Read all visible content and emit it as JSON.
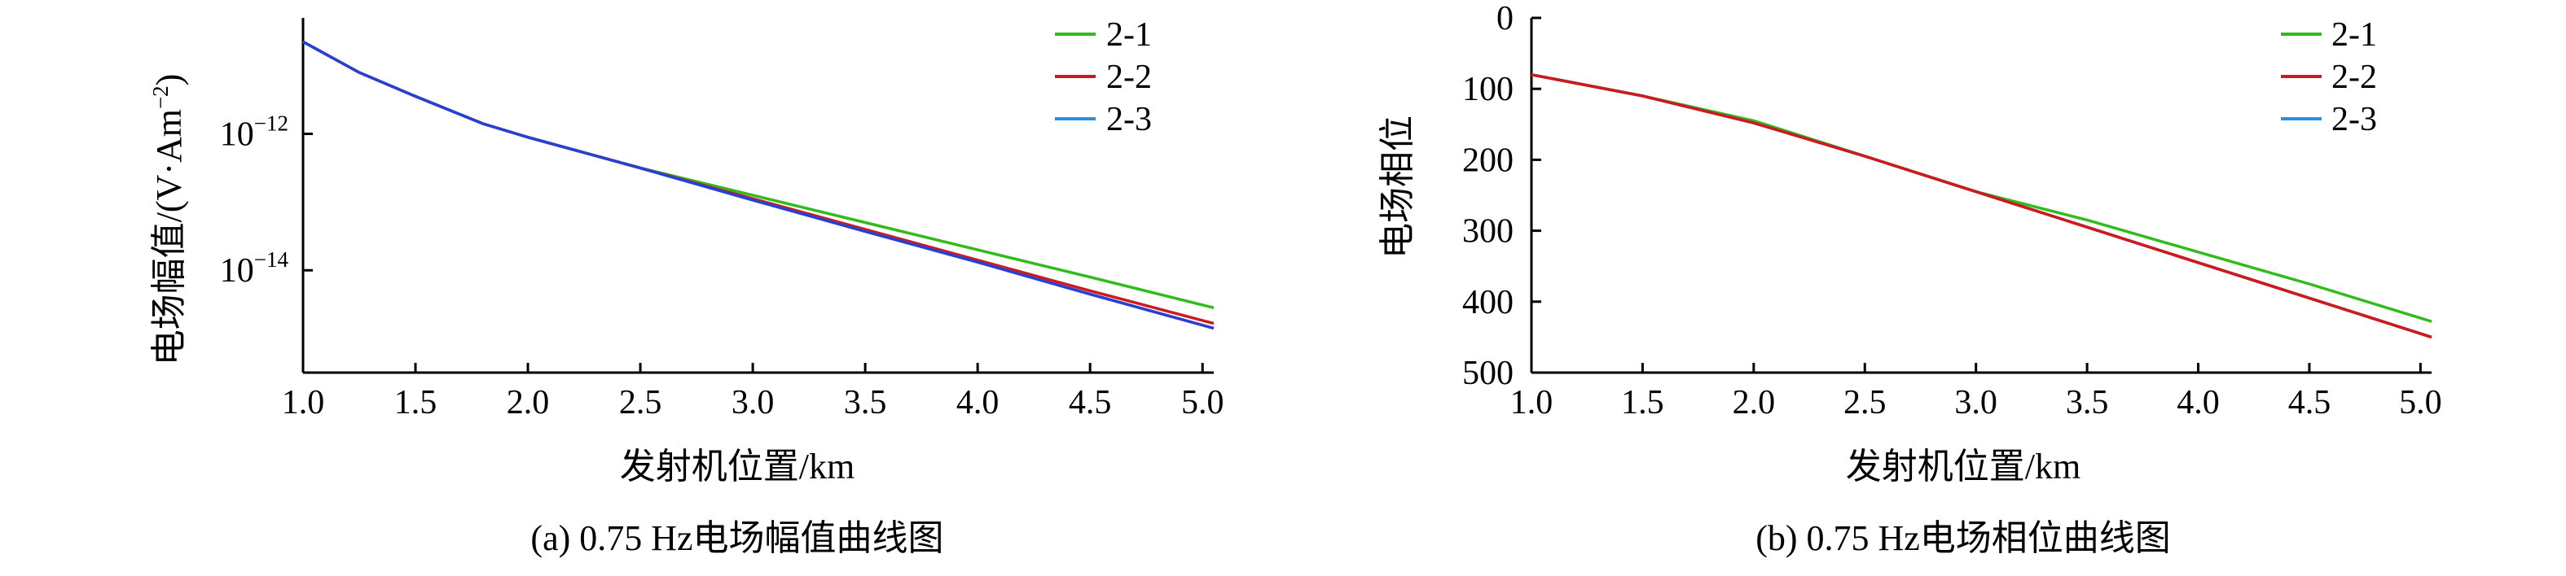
{
  "chart_data": [
    {
      "type": "line",
      "title": "(a) 0.75 Hz电场幅值曲线图",
      "xlabel": "发射机位置/km",
      "ylabel": "电场幅值/(V·Am⁻²)",
      "yscale": "log",
      "xlim": [
        1.0,
        5.05
      ],
      "ylim_log10": [
        -15.5,
        -10.3
      ],
      "xticks": [
        "1.0",
        "1.5",
        "2.0",
        "2.5",
        "3.0",
        "3.5",
        "4.0",
        "4.5",
        "5.0"
      ],
      "ytick_exponents": [
        "−12",
        "−14"
      ],
      "legend_position": "top-right",
      "series": [
        {
          "name": "2-1",
          "color": "#33bb1e",
          "x": [
            1.0,
            1.25,
            1.5,
            1.8,
            2.0,
            2.5,
            3.0,
            3.5,
            4.0,
            4.5,
            5.05
          ],
          "log10_y": [
            -10.65,
            -11.1,
            -11.45,
            -11.85,
            -12.05,
            -12.5,
            -12.9,
            -13.3,
            -13.7,
            -14.1,
            -14.55
          ]
        },
        {
          "name": "2-2",
          "color": "#cc1a1e",
          "x": [
            1.0,
            1.25,
            1.5,
            1.8,
            2.0,
            2.5,
            3.0,
            3.5,
            4.0,
            4.5,
            5.05
          ],
          "log10_y": [
            -10.65,
            -11.1,
            -11.45,
            -11.85,
            -12.05,
            -12.5,
            -12.95,
            -13.4,
            -13.85,
            -14.3,
            -14.78
          ]
        },
        {
          "name": "2-3",
          "color": "#2a8fe0",
          "x": [
            1.0,
            1.25,
            1.5,
            1.8,
            2.0,
            2.5,
            3.0,
            3.5,
            4.0,
            4.5,
            5.05
          ],
          "log10_y": [
            -10.65,
            -11.1,
            -11.45,
            -11.85,
            -12.05,
            -12.5,
            -12.97,
            -13.43,
            -13.88,
            -14.35,
            -14.85
          ]
        }
      ],
      "overlay_color": "#2a3fd0"
    },
    {
      "type": "line",
      "title": "(b) 0.75 Hz电场相位曲线图",
      "xlabel": "发射机位置/km",
      "ylabel": "电场相位",
      "yreversed": true,
      "xlim": [
        1.0,
        5.05
      ],
      "ylim": [
        0,
        500
      ],
      "xticks": [
        "1.0",
        "1.5",
        "2.0",
        "2.5",
        "3.0",
        "3.5",
        "4.0",
        "4.5",
        "5.0"
      ],
      "yticks": [
        "0",
        "100",
        "200",
        "300",
        "400",
        "500"
      ],
      "legend_position": "top-right",
      "series": [
        {
          "name": "2-1",
          "color": "#33bb1e",
          "x": [
            1.0,
            1.5,
            2.0,
            2.5,
            3.0,
            3.5,
            4.0,
            4.5,
            5.05
          ],
          "y": [
            80,
            110,
            145,
            195,
            245,
            285,
            330,
            375,
            428
          ]
        },
        {
          "name": "2-2",
          "color": "#cc1a1e",
          "x": [
            1.0,
            1.5,
            2.0,
            2.5,
            3.0,
            3.5,
            4.0,
            4.5,
            5.05
          ],
          "y": [
            80,
            110,
            148,
            195,
            245,
            295,
            345,
            395,
            450
          ]
        },
        {
          "name": "2-3",
          "color": "#2a8fe0",
          "x": [
            1.0,
            1.5,
            2.0,
            2.5,
            3.0,
            3.5,
            4.0,
            4.5,
            5.05
          ],
          "y": [
            80,
            110,
            148,
            195,
            245,
            295,
            345,
            395,
            450
          ]
        }
      ]
    }
  ]
}
